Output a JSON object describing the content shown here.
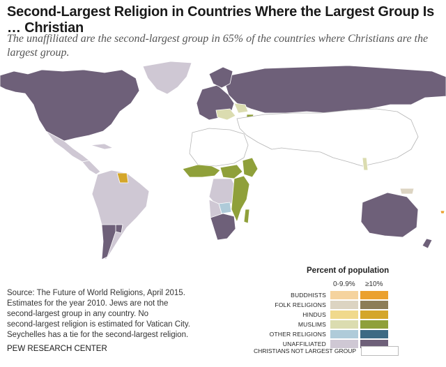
{
  "title": "Second-Largest Religion in Countries Where the Largest Group Is … Christian",
  "subtitle": "The unaffiliated are the second-largest group in 65% of the countries where Christians are the largest group.",
  "source": [
    "Source: The Future of World Religions, April 2015.",
    "Estimates for the year 2010. Jews are not the",
    "second-largest group in any country. No",
    "second-largest religion is estimated for Vatican City.",
    "Seychelles has a tie for the second-largest religion."
  ],
  "credit": "PEW RESEARCH CENTER",
  "legend": {
    "title": "Percent of population",
    "col_low": "0-9.9%",
    "col_high": "≥10%",
    "items": [
      {
        "label": "BUDDHISTS",
        "low": "#f5d39e",
        "high": "#eba12f"
      },
      {
        "label": "FOLK RELIGIONS",
        "low": "#dcd4c2",
        "high": "#8c7d58"
      },
      {
        "label": "HINDUS",
        "low": "#f0d98c",
        "high": "#d4a62a"
      },
      {
        "label": "MUSLIMS",
        "low": "#dbdcb0",
        "high": "#8fa03a"
      },
      {
        "label": "OTHER RELIGIONS",
        "low": "#afcbd9",
        "high": "#3d6a84"
      },
      {
        "label": "UNAFFILIATED",
        "low": "#cfc8d4",
        "high": "#6e6079"
      }
    ],
    "not_largest_label": "CHRISTIANS NOT LARGEST GROUP",
    "not_largest_color": "#ffffff"
  },
  "colors": {
    "unaffiliated_high": "#6e6079",
    "unaffiliated_low": "#cfc8d4",
    "muslims_high": "#8fa03a",
    "muslims_low": "#dbdcb0",
    "folk_low": "#dcd4c2",
    "folk_high": "#8c7d58",
    "hindus_high": "#d4a62a",
    "other_low": "#afcbd9",
    "buddhists_high": "#eba12f",
    "border": "#ffffff",
    "not_largest_stroke": "#b5b5b5"
  }
}
